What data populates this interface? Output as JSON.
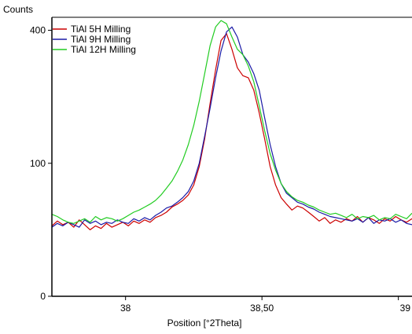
{
  "chart_data": {
    "type": "line",
    "ylabel": "Counts",
    "xlabel": "Position [°2Theta]",
    "x_ticks": [
      {
        "value": 38.0,
        "label": "38"
      },
      {
        "value": 38.5,
        "label": "38,50"
      },
      {
        "value": 39.0,
        "label": "39"
      }
    ],
    "y_ticks": [
      {
        "value": 0,
        "label": "0"
      },
      {
        "value": 100,
        "label": "100"
      },
      {
        "value": 400,
        "label": "400"
      }
    ],
    "y_scale": "sqrt",
    "xlim": [
      37.73,
      39.05
    ],
    "ylim": [
      0,
      440
    ],
    "legend_position": "top-left",
    "series": [
      {
        "name": "TiAl 5H Milling",
        "color": "#cc0000",
        "x": [
          37.73,
          37.75,
          37.77,
          37.79,
          37.81,
          37.83,
          37.85,
          37.87,
          37.89,
          37.91,
          37.93,
          37.95,
          37.97,
          37.99,
          38.01,
          38.03,
          38.05,
          38.07,
          38.09,
          38.11,
          38.13,
          38.15,
          38.17,
          38.19,
          38.21,
          38.23,
          38.25,
          38.27,
          38.29,
          38.31,
          38.33,
          38.35,
          38.37,
          38.39,
          38.41,
          38.43,
          38.45,
          38.47,
          38.49,
          38.51,
          38.53,
          38.55,
          38.57,
          38.59,
          38.61,
          38.63,
          38.65,
          38.67,
          38.69,
          38.71,
          38.73,
          38.75,
          38.77,
          38.79,
          38.81,
          38.83,
          38.85,
          38.87,
          38.89,
          38.91,
          38.93,
          38.95,
          38.97,
          38.99,
          39.01,
          39.03,
          39.05
        ],
        "values": [
          28,
          32,
          29,
          31,
          27,
          33,
          29,
          25,
          28,
          26,
          30,
          27,
          29,
          31,
          28,
          32,
          30,
          33,
          31,
          35,
          37,
          40,
          45,
          48,
          52,
          58,
          70,
          95,
          140,
          210,
          290,
          370,
          390,
          345,
          295,
          275,
          270,
          240,
          190,
          140,
          95,
          70,
          55,
          48,
          42,
          46,
          44,
          40,
          36,
          32,
          35,
          30,
          33,
          31,
          34,
          32,
          36,
          31,
          35,
          33,
          30,
          34,
          32,
          36,
          33,
          31,
          34
        ]
      },
      {
        "name": "TiAl 9H Milling",
        "color": "#1a1aa6",
        "x": [
          37.73,
          37.75,
          37.77,
          37.79,
          37.81,
          37.83,
          37.85,
          37.87,
          37.89,
          37.91,
          37.93,
          37.95,
          37.97,
          37.99,
          38.01,
          38.03,
          38.05,
          38.07,
          38.09,
          38.11,
          38.13,
          38.15,
          38.17,
          38.19,
          38.21,
          38.23,
          38.25,
          38.27,
          38.29,
          38.31,
          38.33,
          38.35,
          38.37,
          38.39,
          38.41,
          38.43,
          38.45,
          38.47,
          38.49,
          38.51,
          38.53,
          38.55,
          38.57,
          38.59,
          38.61,
          38.63,
          38.65,
          38.67,
          38.69,
          38.71,
          38.73,
          38.75,
          38.77,
          38.79,
          38.81,
          38.83,
          38.85,
          38.87,
          38.89,
          38.91,
          38.93,
          38.95,
          38.97,
          38.99,
          39.01,
          39.03,
          39.05
        ],
        "values": [
          27,
          30,
          28,
          31,
          29,
          27,
          33,
          30,
          32,
          29,
          31,
          30,
          33,
          31,
          30,
          34,
          32,
          35,
          33,
          37,
          40,
          44,
          46,
          50,
          55,
          62,
          75,
          100,
          145,
          200,
          270,
          340,
          395,
          410,
          380,
          330,
          310,
          280,
          240,
          180,
          130,
          95,
          72,
          60,
          55,
          50,
          48,
          45,
          43,
          40,
          38,
          36,
          35,
          34,
          33,
          32,
          34,
          31,
          35,
          30,
          33,
          32,
          34,
          31,
          33,
          30,
          29
        ]
      },
      {
        "name": "TiAl 12H Milling",
        "color": "#22cc22",
        "x": [
          37.73,
          37.75,
          37.77,
          37.79,
          37.81,
          37.83,
          37.85,
          37.87,
          37.89,
          37.91,
          37.93,
          37.95,
          37.97,
          37.99,
          38.01,
          38.03,
          38.05,
          38.07,
          38.09,
          38.11,
          38.13,
          38.15,
          38.17,
          38.19,
          38.21,
          38.23,
          38.25,
          38.27,
          38.29,
          38.31,
          38.33,
          38.35,
          38.37,
          38.39,
          38.41,
          38.43,
          38.45,
          38.47,
          38.49,
          38.51,
          38.53,
          38.55,
          38.57,
          38.59,
          38.61,
          38.63,
          38.65,
          38.67,
          38.69,
          38.71,
          38.73,
          38.75,
          38.77,
          38.79,
          38.81,
          38.83,
          38.85,
          38.87,
          38.89,
          38.91,
          38.93,
          38.95,
          38.97,
          38.99,
          39.01,
          39.03,
          39.05
        ],
        "values": [
          38,
          36,
          33,
          31,
          30,
          32,
          34,
          31,
          36,
          33,
          35,
          34,
          32,
          34,
          37,
          40,
          42,
          45,
          48,
          52,
          58,
          66,
          75,
          88,
          105,
          130,
          165,
          215,
          280,
          355,
          410,
          430,
          420,
          380,
          345,
          330,
          300,
          260,
          205,
          155,
          115,
          90,
          72,
          62,
          56,
          52,
          50,
          47,
          45,
          42,
          40,
          38,
          39,
          37,
          35,
          38,
          34,
          36,
          35,
          37,
          33,
          35,
          34,
          38,
          36,
          34,
          39
        ]
      }
    ]
  }
}
